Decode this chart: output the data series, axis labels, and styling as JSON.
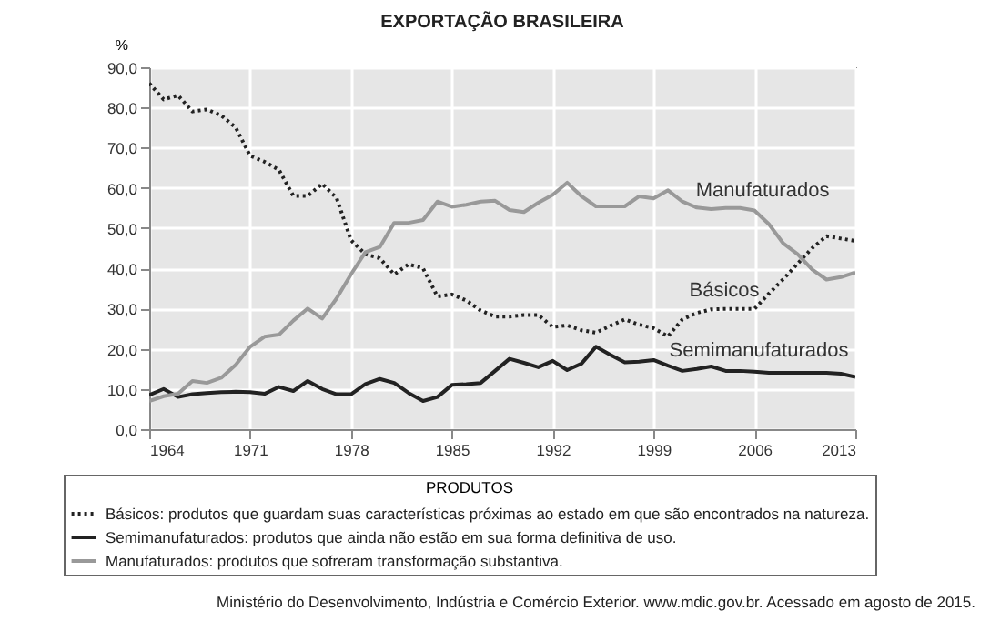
{
  "chart_data": {
    "type": "line",
    "title": "EXPORTAÇÃO BRASILEIRA",
    "ylabel": "%",
    "legend_title": "PRODUTOS",
    "legend": "bottom",
    "grid": true,
    "xlim": [
      1964,
      2013
    ],
    "xticks": [
      1964,
      1971,
      1978,
      1985,
      1992,
      1999,
      2006,
      2013
    ],
    "ylim": [
      0,
      90
    ],
    "yticks": [
      {
        "value": 0,
        "label": "0,0"
      },
      {
        "value": 10,
        "label": "10,0"
      },
      {
        "value": 20,
        "label": "20,0"
      },
      {
        "value": 30,
        "label": "30,0"
      },
      {
        "value": 40,
        "label": "40,0"
      },
      {
        "value": 50,
        "label": "50,0"
      },
      {
        "value": 60,
        "label": "60,0"
      },
      {
        "value": 70,
        "label": "70,0"
      },
      {
        "value": 80,
        "label": "80,0"
      },
      {
        "value": 90,
        "label": "90,0"
      }
    ],
    "x": [
      1964,
      1965,
      1966,
      1967,
      1968,
      1969,
      1970,
      1971,
      1972,
      1973,
      1974,
      1975,
      1976,
      1977,
      1978,
      1979,
      1980,
      1981,
      1982,
      1983,
      1984,
      1985,
      1986,
      1987,
      1988,
      1989,
      1990,
      1991,
      1992,
      1993,
      1994,
      1995,
      1996,
      1997,
      1998,
      1999,
      2000,
      2001,
      2002,
      2003,
      2004,
      2005,
      2006,
      2007,
      2008,
      2009,
      2010,
      2011,
      2012,
      2013
    ],
    "series": [
      {
        "name": "Básicos: produtos que guardam suas características próximas ao estado em que são encontrados na natureza.",
        "color": "#222222",
        "line_style": "dotted",
        "values": [
          86,
          82,
          83,
          79,
          79.5,
          78,
          75,
          68,
          66.5,
          64.5,
          58,
          58,
          61,
          57.5,
          47,
          43.5,
          42.5,
          38.5,
          41,
          40,
          33,
          33.5,
          32,
          29.5,
          28,
          28,
          28.4,
          28.4,
          25.4,
          25.8,
          24.6,
          24,
          25.7,
          27.3,
          26,
          25.1,
          23.1,
          27.3,
          28.9,
          29.8,
          29.9,
          29.9,
          29.9,
          33.7,
          37.3,
          41.2,
          45,
          48,
          47.4,
          46.8
        ]
      },
      {
        "name": "Semimanufaturados: produtos que ainda não estão em sua forma definitiva de uso.",
        "color": "#222222",
        "line_style": "solid",
        "values": [
          8.5,
          10,
          8,
          8.7,
          9,
          9.2,
          9.3,
          9.2,
          8.8,
          10.5,
          9.5,
          12,
          10,
          8.7,
          8.7,
          11.2,
          12.5,
          11.5,
          9,
          7,
          8,
          11,
          11.2,
          11.5,
          14.5,
          17.5,
          16.5,
          15.4,
          17,
          14.7,
          16.3,
          20.5,
          18.5,
          16.6,
          16.8,
          17.2,
          15.8,
          14.5,
          15,
          15.6,
          14.5,
          14.5,
          14.3,
          14,
          14,
          14,
          14,
          14,
          13.8,
          13
        ]
      },
      {
        "name": "Manufaturados: produtos que sofreram transformação substantiva.",
        "color": "#999999",
        "line_style": "solid",
        "values": [
          7,
          8.2,
          8.8,
          12,
          11.5,
          12.8,
          16,
          20.5,
          23,
          23.5,
          27,
          30,
          27.5,
          32.5,
          38.5,
          44,
          45.3,
          51.3,
          51.3,
          52,
          56.6,
          55.3,
          55.8,
          56.6,
          56.8,
          54.5,
          54,
          56.3,
          58.3,
          61.3,
          57.9,
          55.4,
          55.4,
          55.4,
          57.9,
          57.4,
          59.4,
          56.6,
          55.1,
          54.7,
          55,
          55,
          54.4,
          51,
          46.2,
          43.5,
          39.7,
          37.2,
          37.8,
          39
        ]
      }
    ],
    "annotations": [
      "Manufaturados",
      "Básicos",
      "Semimanufaturados",
      "Ministério do Desenvolvimento, Indústria e Comércio Exterior. www.mdic.gov.br. Acessado em agosto de 2015."
    ]
  }
}
